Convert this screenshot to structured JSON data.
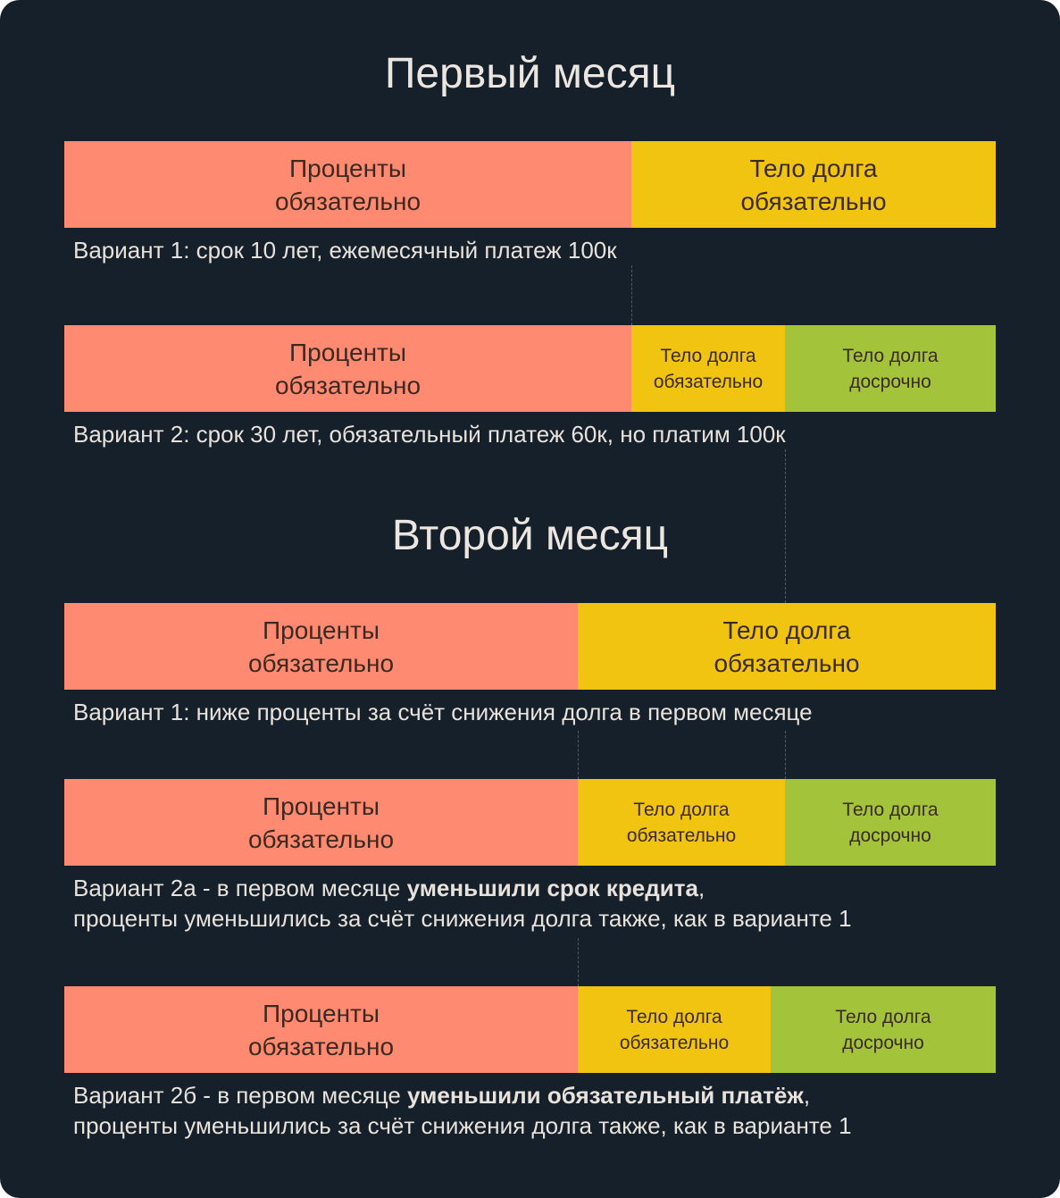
{
  "colors": {
    "background": "#16202a",
    "interest": "#ff8a72",
    "principal_required": "#f0c410",
    "principal_early": "#a3c43a"
  },
  "month1": {
    "title": "Первый месяц",
    "variant1": {
      "segments": [
        "Проценты обязательно",
        "Тело долга обязательно"
      ],
      "caption": "Вариант 1: срок 10 лет, ежемесячный платеж 100к"
    },
    "variant2": {
      "segments": [
        "Проценты обязательно",
        "Тело долга обязательно",
        "Тело долга досрочно"
      ],
      "caption": "Вариант 2: срок 30 лет, обязательный платеж 60к, но платим 100к"
    }
  },
  "month2": {
    "title": "Второй месяц",
    "variant1": {
      "segments": [
        "Проценты обязательно",
        "Тело долга обязательно"
      ],
      "caption": "Вариант 1: ниже проценты за счёт снижения долга в первом месяце"
    },
    "variant2a": {
      "segments": [
        "Проценты обязательно",
        "Тело долга обязательно",
        "Тело долга досрочно"
      ],
      "caption_pre": "Вариант 2а - в первом месяце ",
      "caption_bold": "уменьшили срок кредита",
      "caption_post": ",",
      "caption_line2": "проценты уменьшились за счёт снижения долга также, как в варианте 1"
    },
    "variant2b": {
      "segments": [
        "Проценты обязательно",
        "Тело долга обязательно",
        "Тело долга досрочно"
      ],
      "caption_pre": "Вариант 2б - в первом месяце ",
      "caption_bold": "уменьшили обязательный платёж",
      "caption_post": ",",
      "caption_line2": "проценты уменьшились за счёт снижения долга также, как в варианте 1"
    }
  }
}
